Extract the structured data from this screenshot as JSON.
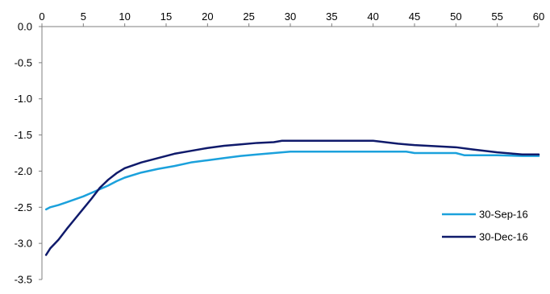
{
  "chart_data": {
    "type": "line",
    "x_ticks": [
      0,
      5,
      10,
      15,
      20,
      25,
      30,
      35,
      40,
      45,
      50,
      55,
      60
    ],
    "x_tick_labels": [
      "0",
      "5",
      "10",
      "15",
      "20",
      "25",
      "30",
      "35",
      "40",
      "45",
      "50",
      "55",
      "60"
    ],
    "xlim": [
      0,
      60
    ],
    "y_ticks": [
      0.0,
      -0.5,
      -1.0,
      -1.5,
      -2.0,
      -2.5,
      -3.0,
      -3.5
    ],
    "y_tick_labels": [
      "0.0",
      "-0.5",
      "-1.0",
      "-1.5",
      "-2.0",
      "-2.5",
      "-3.0",
      "-3.5"
    ],
    "ylim": [
      -3.5,
      0.0
    ],
    "grid": false,
    "legend_position": "right",
    "series": [
      {
        "name": "30-Sep-16",
        "color": "#1ba1dc",
        "x": [
          0.5,
          1,
          2,
          3,
          4,
          5,
          6,
          7,
          8,
          9,
          10,
          12,
          14,
          16,
          18,
          20,
          22,
          24,
          26,
          28,
          30,
          35,
          40,
          44,
          45,
          50,
          51,
          55,
          58,
          60
        ],
        "y": [
          -2.53,
          -2.5,
          -2.47,
          -2.43,
          -2.39,
          -2.35,
          -2.3,
          -2.25,
          -2.2,
          -2.14,
          -2.09,
          -2.02,
          -1.97,
          -1.93,
          -1.88,
          -1.85,
          -1.82,
          -1.79,
          -1.77,
          -1.75,
          -1.73,
          -1.73,
          -1.73,
          -1.73,
          -1.75,
          -1.75,
          -1.78,
          -1.78,
          -1.79,
          -1.79
        ]
      },
      {
        "name": "30-Dec-16",
        "color": "#0f1a6b",
        "x": [
          0.5,
          1,
          2,
          3,
          4,
          5,
          6,
          7,
          8,
          9,
          10,
          12,
          14,
          16,
          18,
          20,
          22,
          24,
          26,
          28,
          29,
          30,
          35,
          40,
          43,
          45,
          50,
          52,
          55,
          57,
          58,
          60
        ],
        "y": [
          -3.16,
          -3.07,
          -2.95,
          -2.8,
          -2.66,
          -2.52,
          -2.38,
          -2.23,
          -2.12,
          -2.03,
          -1.96,
          -1.88,
          -1.82,
          -1.76,
          -1.72,
          -1.68,
          -1.65,
          -1.63,
          -1.61,
          -1.6,
          -1.58,
          -1.58,
          -1.58,
          -1.58,
          -1.62,
          -1.64,
          -1.67,
          -1.7,
          -1.74,
          -1.76,
          -1.77,
          -1.77
        ]
      }
    ]
  }
}
